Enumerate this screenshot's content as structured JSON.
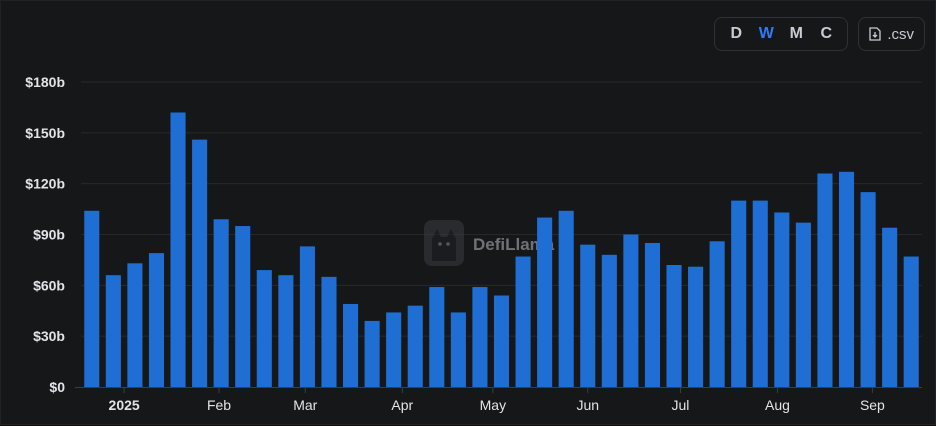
{
  "toolbar": {
    "granularity": [
      {
        "label": "D",
        "active": false
      },
      {
        "label": "W",
        "active": true
      },
      {
        "label": "M",
        "active": false
      },
      {
        "label": "C",
        "active": false
      }
    ],
    "csv_label": ".csv",
    "csv_icon": "file-download-icon"
  },
  "watermark": {
    "text": "DefiLlama",
    "icon": "llama-logo-icon"
  },
  "colors": {
    "bar": "#1f6ed4",
    "accent": "#2f7bf6",
    "grid": "#26282d",
    "axis": "#3a3d44"
  },
  "chart_data": {
    "type": "bar",
    "title": "",
    "xlabel": "",
    "ylabel": "",
    "ylim": [
      0,
      180
    ],
    "y_ticks": [
      {
        "value": 0,
        "label": "$0"
      },
      {
        "value": 30,
        "label": "$30b"
      },
      {
        "value": 60,
        "label": "$60b"
      },
      {
        "value": 90,
        "label": "$90b"
      },
      {
        "value": 120,
        "label": "$120b"
      },
      {
        "value": 150,
        "label": "$150b"
      },
      {
        "value": 180,
        "label": "$180b"
      }
    ],
    "x_ticks": [
      {
        "label": "2025",
        "at_bar": 1.5,
        "bold": true
      },
      {
        "label": "Feb",
        "at_bar": 5.9
      },
      {
        "label": "Mar",
        "at_bar": 9.9
      },
      {
        "label": "Apr",
        "at_bar": 14.4
      },
      {
        "label": "May",
        "at_bar": 18.6
      },
      {
        "label": "Jun",
        "at_bar": 23.0
      },
      {
        "label": "Jul",
        "at_bar": 27.3
      },
      {
        "label": "Aug",
        "at_bar": 31.8
      },
      {
        "label": "Sep",
        "at_bar": 36.2
      }
    ],
    "series": [
      {
        "values": [
          104,
          66,
          73,
          79,
          162,
          146,
          99,
          95,
          69,
          66,
          83,
          65,
          49,
          39,
          44,
          48,
          59,
          44,
          59,
          54,
          77,
          100,
          104,
          84,
          78,
          90,
          85,
          72,
          71,
          86,
          110,
          110,
          103,
          97,
          126,
          127,
          115,
          94,
          77
        ]
      }
    ],
    "grid": true,
    "legend": "none"
  }
}
